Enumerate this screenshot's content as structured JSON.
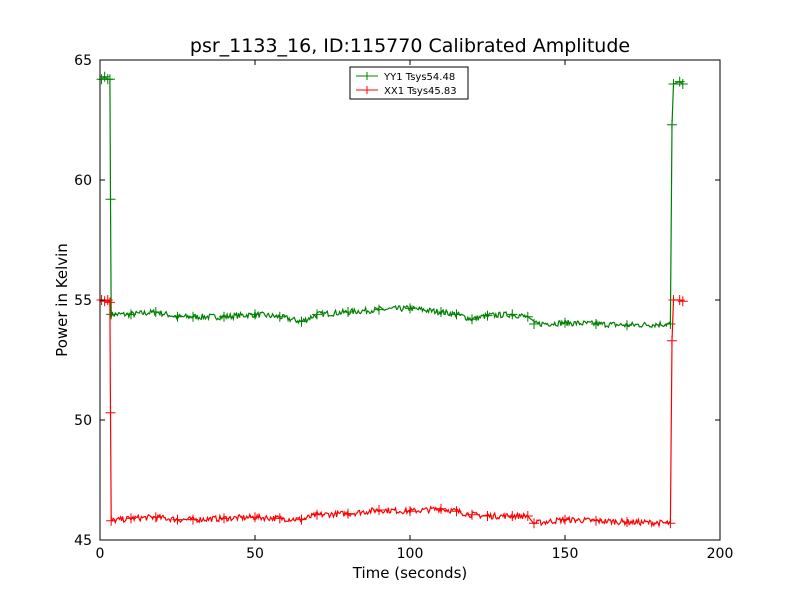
{
  "chart_data": {
    "type": "line",
    "title": "psr_1133_16, ID:115770 Calibrated Amplitude",
    "xlabel": "Time (seconds)",
    "ylabel": "Power in Kelvin",
    "xlim": [
      0,
      200
    ],
    "ylim": [
      45,
      65
    ],
    "xticks": [
      "0",
      "50",
      "100",
      "150",
      "200"
    ],
    "yticks": [
      "45",
      "50",
      "55",
      "60",
      "65"
    ],
    "legend_position": "top-center",
    "grid": false,
    "marker": "+",
    "series": [
      {
        "name": "YY1 Tsys54.48",
        "color": "#008000",
        "points": [
          [
            0.5,
            64.2
          ],
          [
            1.5,
            64.3
          ],
          [
            2.5,
            64.2
          ],
          [
            3.2,
            64.2
          ],
          [
            3.4,
            59.2
          ],
          [
            3.6,
            54.4
          ],
          [
            10,
            54.4
          ],
          [
            18,
            54.5
          ],
          [
            25,
            54.3
          ],
          [
            30,
            54.3
          ],
          [
            40,
            54.3
          ],
          [
            50,
            54.4
          ],
          [
            58,
            54.3
          ],
          [
            65,
            54.1
          ],
          [
            70,
            54.4
          ],
          [
            80,
            54.5
          ],
          [
            90,
            54.6
          ],
          [
            100,
            54.65
          ],
          [
            110,
            54.5
          ],
          [
            115,
            54.4
          ],
          [
            120,
            54.2
          ],
          [
            125,
            54.35
          ],
          [
            133,
            54.4
          ],
          [
            138,
            54.3
          ],
          [
            140,
            54.0
          ],
          [
            150,
            54.05
          ],
          [
            160,
            54.0
          ],
          [
            170,
            53.95
          ],
          [
            184,
            54.0
          ],
          [
            184.5,
            62.3
          ],
          [
            185,
            64.0
          ],
          [
            187,
            64.1
          ],
          [
            188,
            64.0
          ]
        ]
      },
      {
        "name": "XX1 Tsys45.83",
        "color": "#ff0000",
        "points": [
          [
            0.5,
            55.0
          ],
          [
            1.5,
            54.95
          ],
          [
            2.5,
            55.0
          ],
          [
            3.2,
            54.9
          ],
          [
            3.4,
            50.3
          ],
          [
            3.6,
            45.8
          ],
          [
            10,
            45.9
          ],
          [
            18,
            45.95
          ],
          [
            25,
            45.85
          ],
          [
            30,
            45.85
          ],
          [
            40,
            45.9
          ],
          [
            50,
            45.95
          ],
          [
            58,
            45.9
          ],
          [
            65,
            45.85
          ],
          [
            70,
            46.05
          ],
          [
            80,
            46.1
          ],
          [
            90,
            46.25
          ],
          [
            100,
            46.2
          ],
          [
            110,
            46.3
          ],
          [
            115,
            46.2
          ],
          [
            120,
            46.05
          ],
          [
            125,
            46.0
          ],
          [
            133,
            46.0
          ],
          [
            138,
            46.0
          ],
          [
            140,
            45.7
          ],
          [
            150,
            45.85
          ],
          [
            160,
            45.8
          ],
          [
            170,
            45.75
          ],
          [
            184,
            45.7
          ],
          [
            184.5,
            53.3
          ],
          [
            185,
            55.0
          ],
          [
            187,
            55.0
          ],
          [
            188,
            54.95
          ]
        ]
      }
    ]
  }
}
